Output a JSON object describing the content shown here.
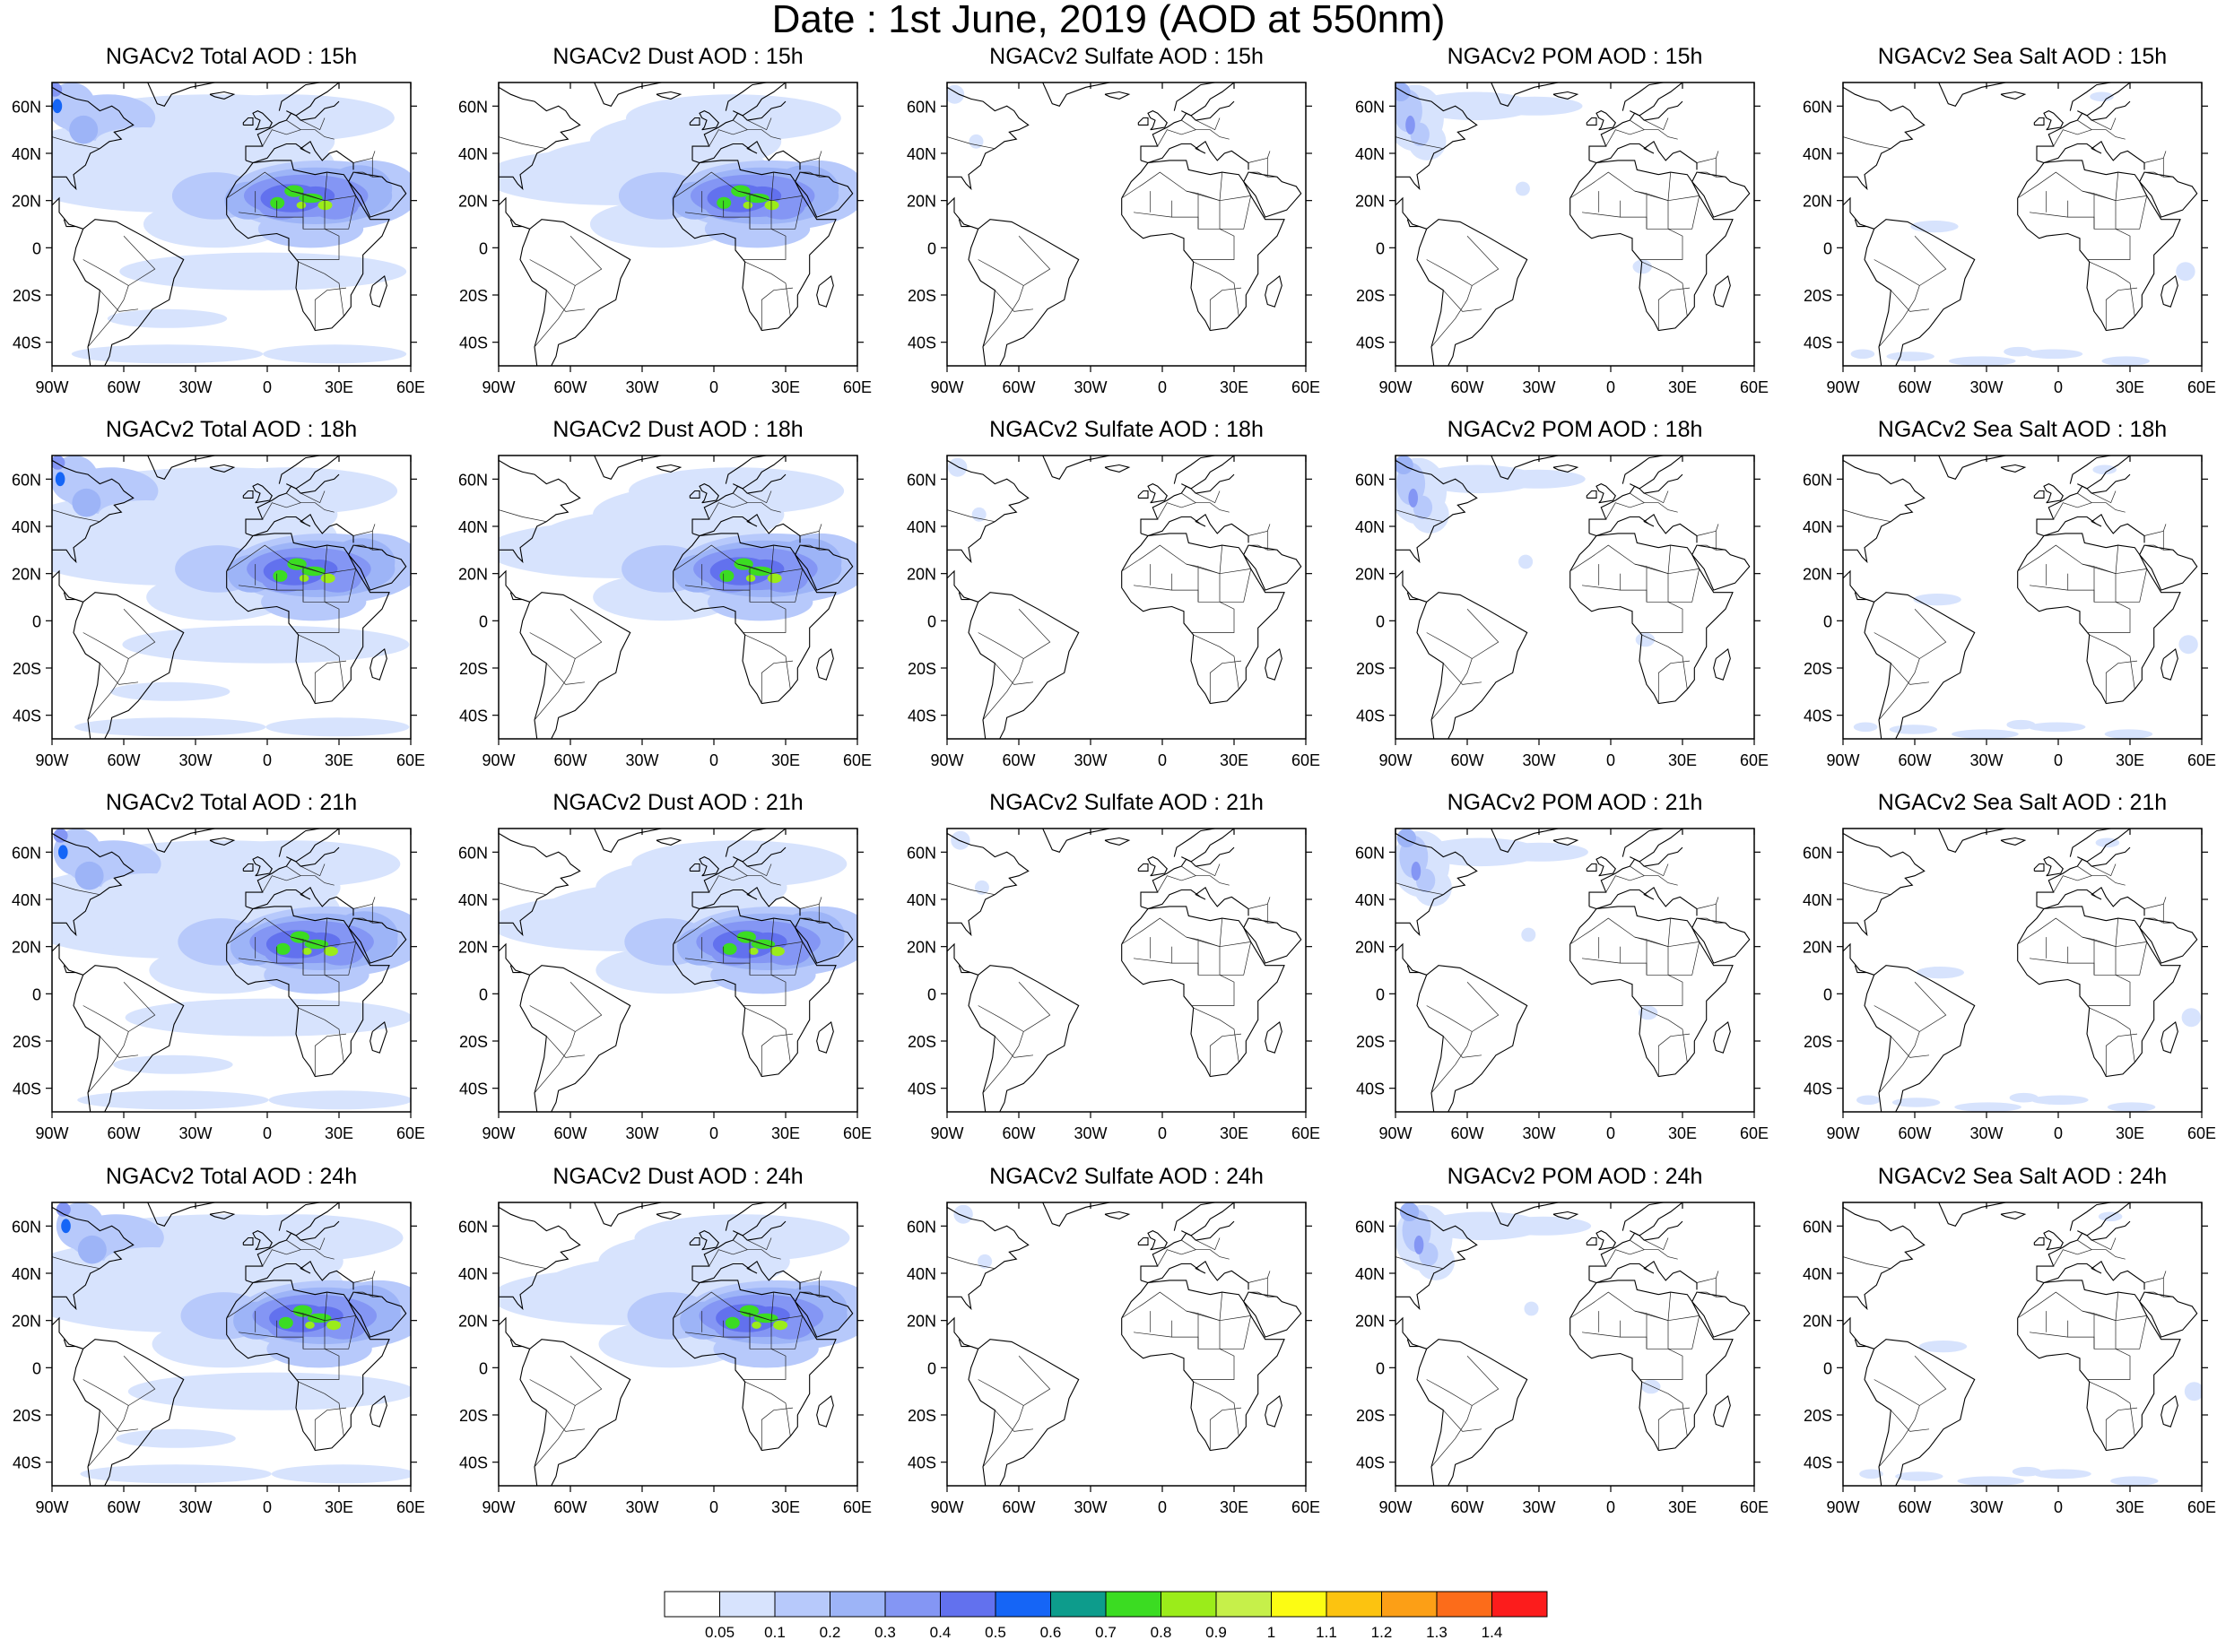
{
  "title": "Date : 1st June, 2019 (AOD at 550nm)",
  "panels": [
    {
      "title": "NGACv2 Total AOD : 15h",
      "species": "total"
    },
    {
      "title": "NGACv2 Dust AOD : 15h",
      "species": "dust"
    },
    {
      "title": "NGACv2 Sulfate AOD : 15h",
      "species": "sulfate"
    },
    {
      "title": "NGACv2 POM AOD : 15h",
      "species": "pom"
    },
    {
      "title": "NGACv2 Sea Salt AOD : 15h",
      "species": "seasalt"
    },
    {
      "title": "NGACv2 Total AOD : 18h",
      "species": "total"
    },
    {
      "title": "NGACv2 Dust AOD : 18h",
      "species": "dust"
    },
    {
      "title": "NGACv2 Sulfate AOD : 18h",
      "species": "sulfate"
    },
    {
      "title": "NGACv2 POM AOD : 18h",
      "species": "pom"
    },
    {
      "title": "NGACv2 Sea Salt AOD : 18h",
      "species": "seasalt"
    },
    {
      "title": "NGACv2 Total AOD : 21h",
      "species": "total"
    },
    {
      "title": "NGACv2 Dust AOD : 21h",
      "species": "dust"
    },
    {
      "title": "NGACv2 Sulfate AOD : 21h",
      "species": "sulfate"
    },
    {
      "title": "NGACv2 POM AOD : 21h",
      "species": "pom"
    },
    {
      "title": "NGACv2 Sea Salt AOD : 21h",
      "species": "seasalt"
    },
    {
      "title": "NGACv2 Total AOD : 24h",
      "species": "total"
    },
    {
      "title": "NGACv2 Dust AOD : 24h",
      "species": "dust"
    },
    {
      "title": "NGACv2 Sulfate AOD : 24h",
      "species": "sulfate"
    },
    {
      "title": "NGACv2 POM AOD : 24h",
      "species": "pom"
    },
    {
      "title": "NGACv2 Sea Salt  AOD : 24h",
      "species": "seasalt"
    }
  ],
  "axes": {
    "lon_ticks": [
      "90W",
      "60W",
      "30W",
      "0",
      "30E",
      "60E"
    ],
    "lat_ticks": [
      "60N",
      "40N",
      "20N",
      "0",
      "20S",
      "40S"
    ]
  },
  "colorbar": {
    "labels": [
      "0.05",
      "0.1",
      "0.2",
      "0.3",
      "0.4",
      "0.5",
      "0.6",
      "0.7",
      "0.8",
      "0.9",
      "1",
      "1.1",
      "1.2",
      "1.3",
      "1.4"
    ],
    "colors": [
      "#ffffff",
      "#d7e3fd",
      "#b7c9fb",
      "#9db4f7",
      "#8496f4",
      "#6271ee",
      "#1565f6",
      "#0d9c8c",
      "#3bdc22",
      "#9bec1a",
      "#c6f04a",
      "#fcfc13",
      "#fcc310",
      "#fc9f16",
      "#fc6c1a",
      "#fc1c1c"
    ]
  }
}
